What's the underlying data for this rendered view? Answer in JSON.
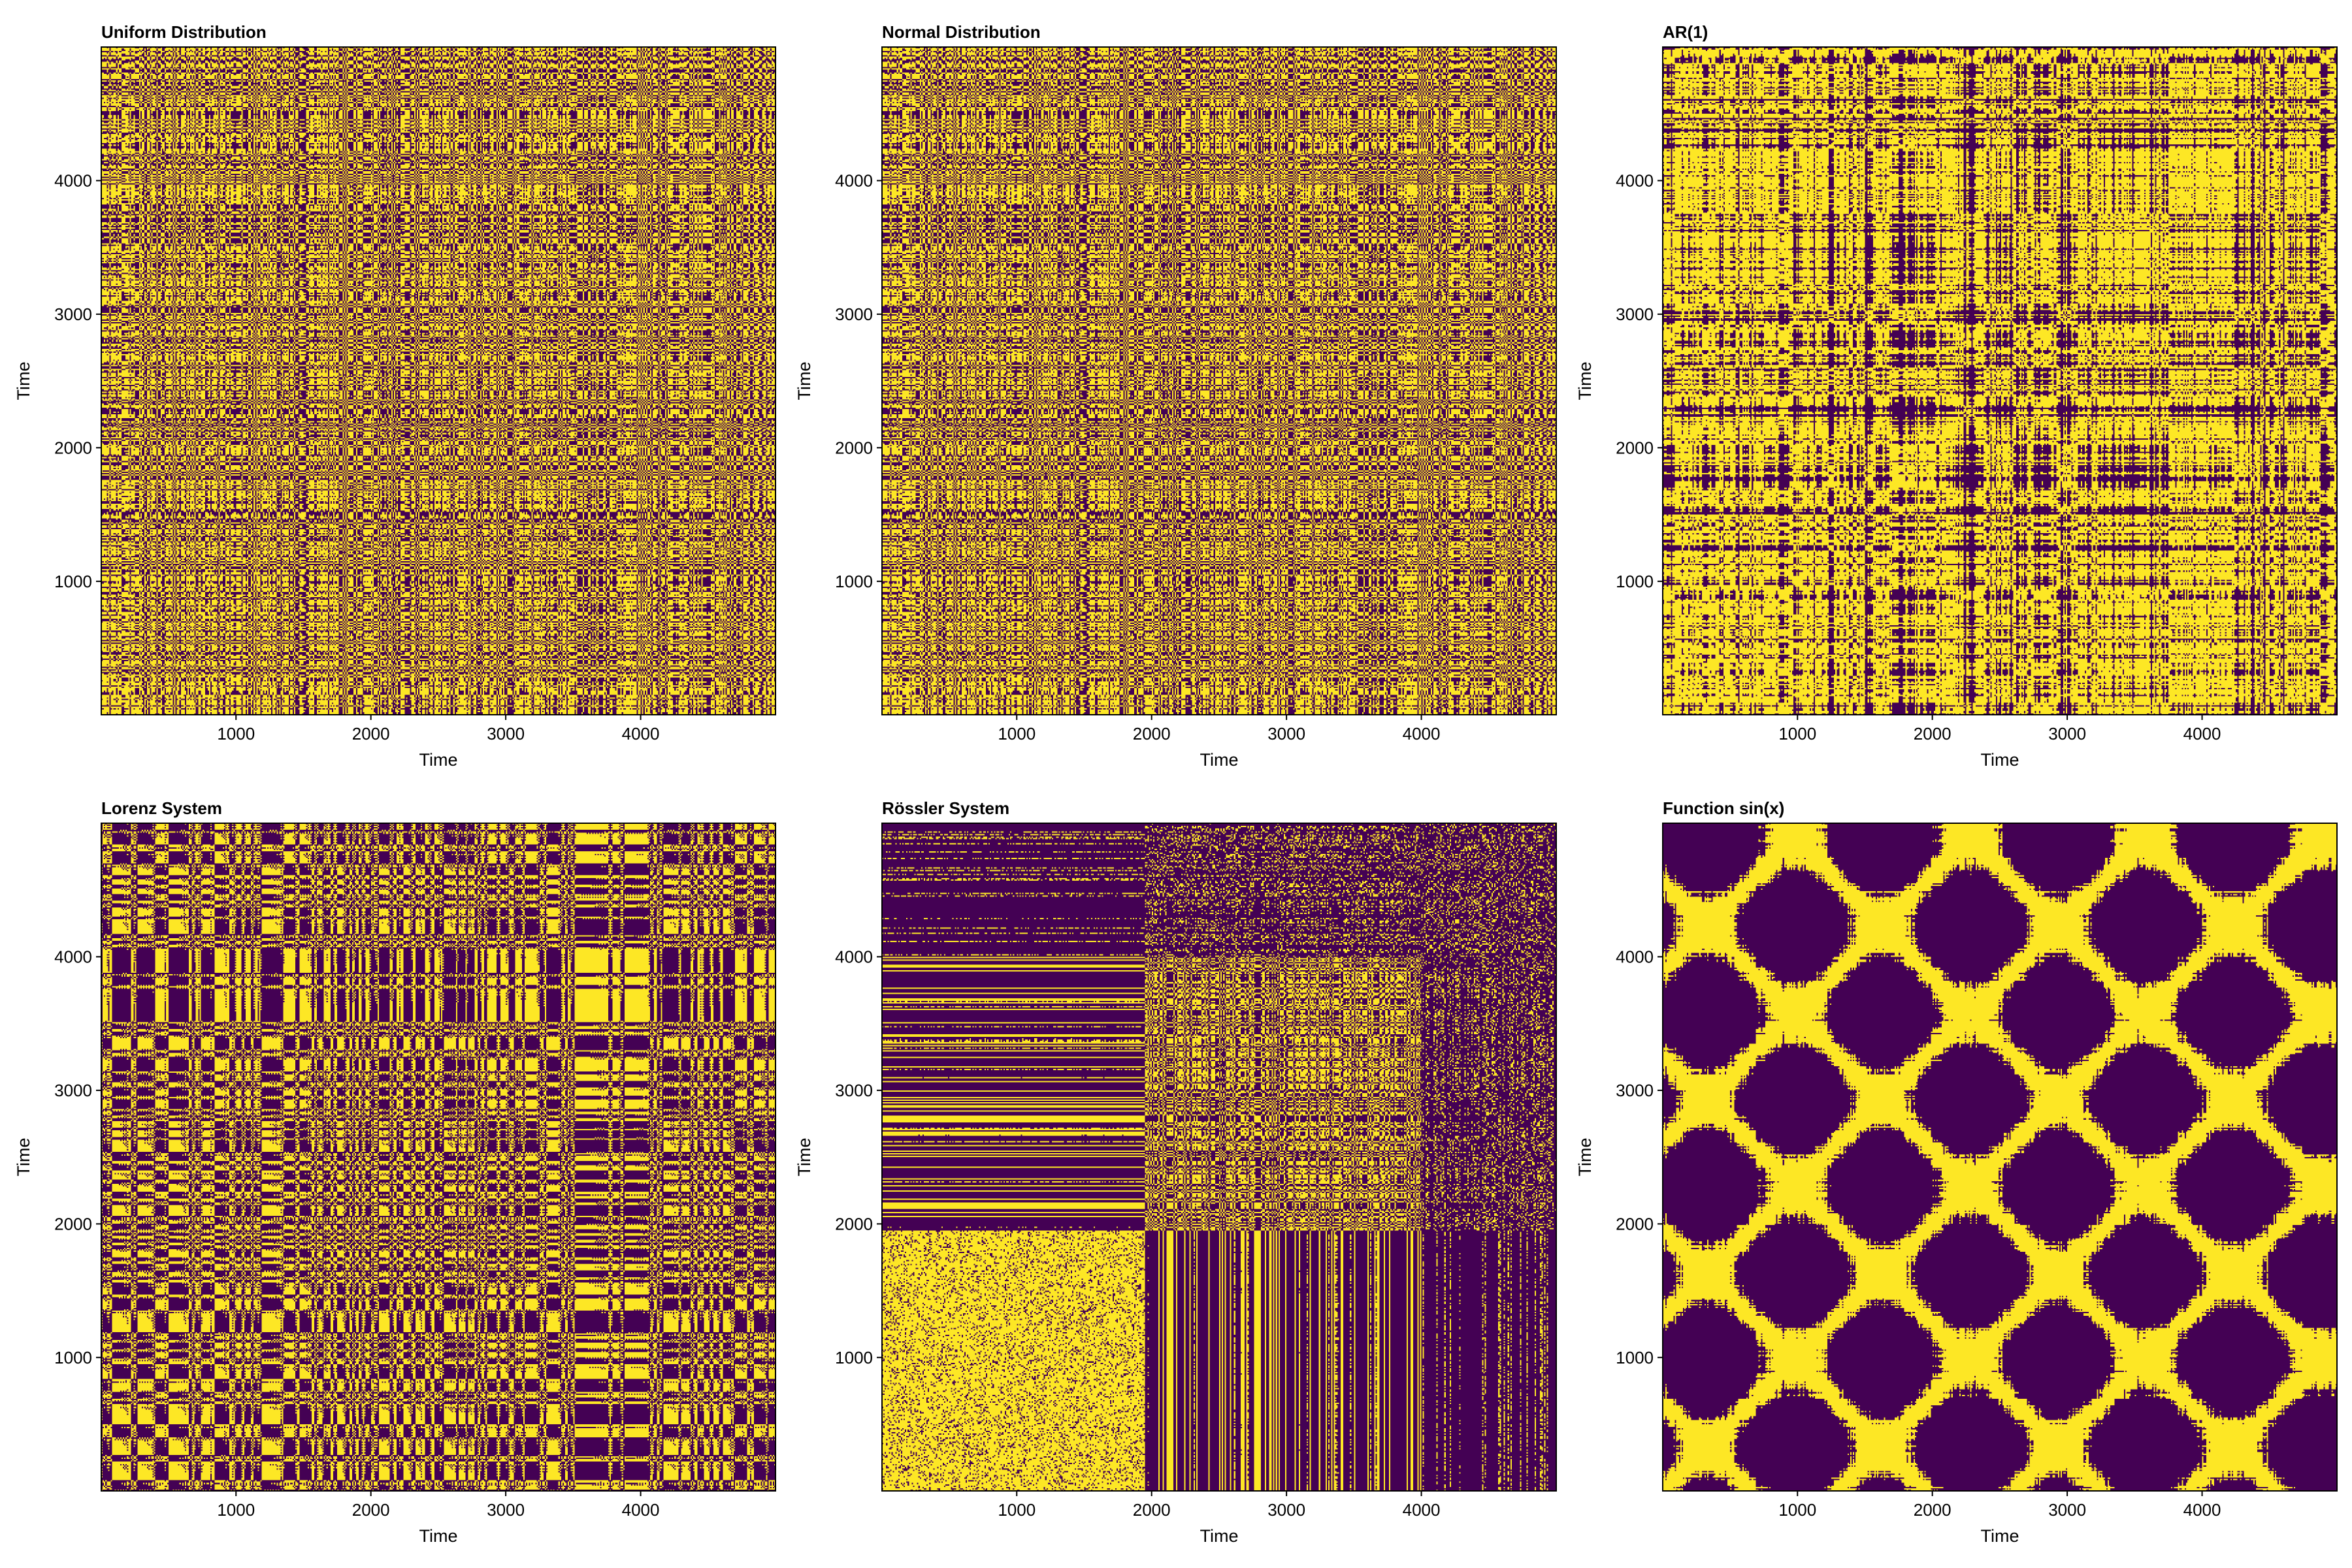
{
  "colors": {
    "recurrent": "#fde725",
    "nonrecurrent": "#440154",
    "frame": "#000000"
  },
  "chart_data": [
    {
      "type": "heatmap",
      "title": "Uniform Distribution",
      "xlabel": "Time",
      "ylabel": "Time",
      "xlim": [
        1,
        5000
      ],
      "ylim": [
        1,
        5000
      ],
      "xticks": [
        1000,
        2000,
        3000,
        4000
      ],
      "yticks": [
        1000,
        2000,
        3000,
        4000
      ],
      "grid": false,
      "values": "binary recurrence matrix (1 = recurrence, 0 = no recurrence)",
      "pattern": "random"
    },
    {
      "type": "heatmap",
      "title": "Normal Distribution",
      "xlabel": "Time",
      "ylabel": "Time",
      "xlim": [
        1,
        5000
      ],
      "ylim": [
        1,
        5000
      ],
      "xticks": [
        1000,
        2000,
        3000,
        4000
      ],
      "yticks": [
        1000,
        2000,
        3000,
        4000
      ],
      "grid": false,
      "values": "binary recurrence matrix (1 = recurrence, 0 = no recurrence)",
      "pattern": "random"
    },
    {
      "type": "heatmap",
      "title": "AR(1)",
      "xlabel": "Time",
      "ylabel": "Time",
      "xlim": [
        1,
        5000
      ],
      "ylim": [
        1,
        5000
      ],
      "xticks": [
        1000,
        2000,
        3000,
        4000
      ],
      "yticks": [
        1000,
        2000,
        3000,
        4000
      ],
      "grid": false,
      "values": "binary recurrence matrix (1 = recurrence, 0 = no recurrence)",
      "pattern": "ar1"
    },
    {
      "type": "heatmap",
      "title": "Lorenz System",
      "xlabel": "Time",
      "ylabel": "Time",
      "xlim": [
        1,
        5000
      ],
      "ylim": [
        1,
        5000
      ],
      "xticks": [
        1000,
        2000,
        3000,
        4000
      ],
      "yticks": [
        1000,
        2000,
        3000,
        4000
      ],
      "grid": false,
      "values": "binary recurrence matrix (1 = recurrence, 0 = no recurrence)",
      "pattern": "lorenz"
    },
    {
      "type": "heatmap",
      "title": "Rössler System",
      "xlabel": "Time",
      "ylabel": "Time",
      "xlim": [
        1,
        5000
      ],
      "ylim": [
        1,
        5000
      ],
      "xticks": [
        1000,
        2000,
        3000,
        4000
      ],
      "yticks": [
        1000,
        2000,
        3000,
        4000
      ],
      "grid": false,
      "values": "binary recurrence matrix (1 = recurrence, 0 = no recurrence)",
      "pattern": "rossler"
    },
    {
      "type": "heatmap",
      "title": "Function sin(x)",
      "xlabel": "Time",
      "ylabel": "Time",
      "xlim": [
        1,
        5000
      ],
      "ylim": [
        1,
        5000
      ],
      "xticks": [
        1000,
        2000,
        3000,
        4000
      ],
      "yticks": [
        1000,
        2000,
        3000,
        4000
      ],
      "grid": false,
      "values": "binary recurrence matrix (1 = recurrence, 0 = no recurrence)",
      "pattern": "sine"
    }
  ]
}
